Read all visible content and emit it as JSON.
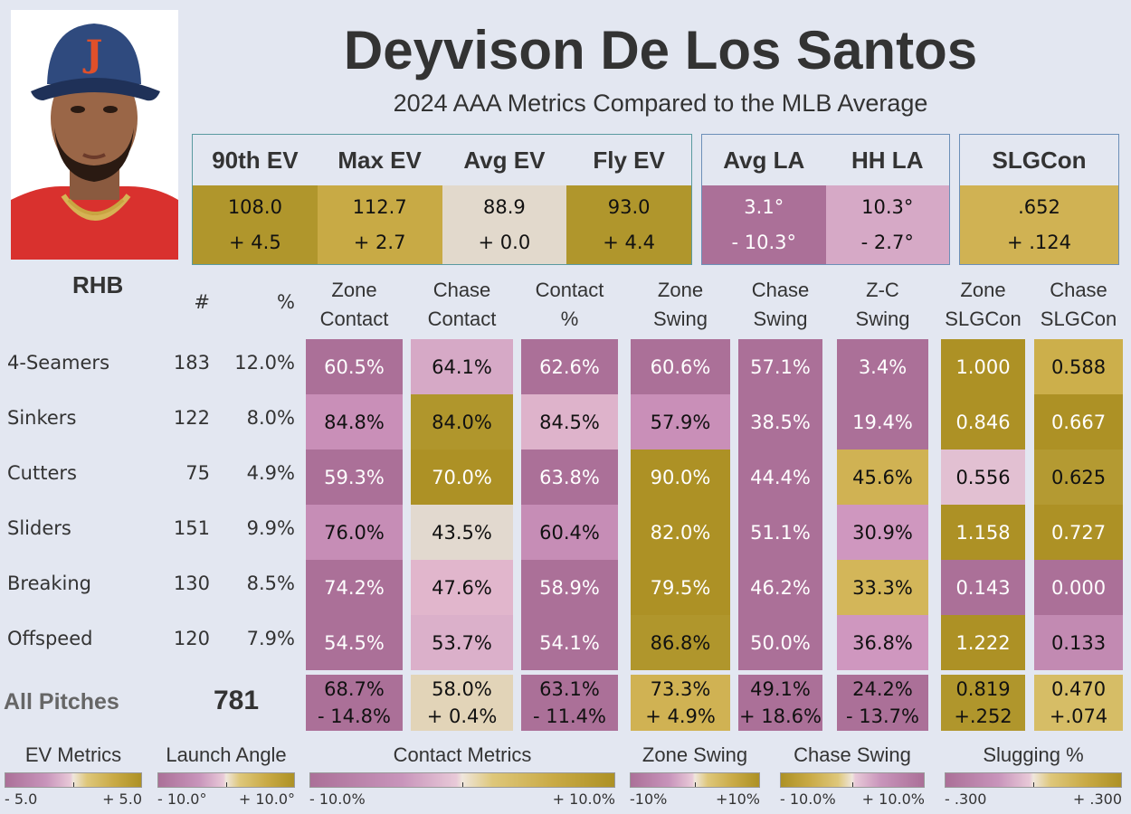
{
  "player": {
    "name": "Deyvison De Los Santos",
    "subtitle": "2024 AAA Metrics Compared to the MLB Average",
    "handedness": "RHB"
  },
  "summary_boxes": [
    {
      "name": "ev-box",
      "headers": [
        "90th EV",
        "Max EV",
        "Avg EV",
        "Fly EV"
      ],
      "values": [
        "108.0",
        "112.7",
        "88.9",
        "93.0"
      ],
      "diffs": [
        "+ 4.5",
        "+ 2.7",
        "+ 0.0",
        "+ 4.4"
      ],
      "colors": [
        "#b0962c",
        "#c8aa45",
        "#e2d9cc",
        "#b0962c"
      ],
      "text": [
        "k",
        "k",
        "k",
        "k"
      ]
    },
    {
      "name": "la-box",
      "headers": [
        "Avg LA",
        "HH LA"
      ],
      "values": [
        "3.1°",
        "10.3°"
      ],
      "diffs": [
        "- 10.3°",
        "- 2.7°"
      ],
      "colors": [
        "#ab7098",
        "#d6a9c6"
      ],
      "text": [
        "w",
        "k"
      ]
    },
    {
      "name": "slgcon-box",
      "headers": [
        "SLGCon"
      ],
      "values": [
        ".652"
      ],
      "diffs": [
        "+ .124"
      ],
      "colors": [
        "#d0b253"
      ],
      "text": [
        "k"
      ]
    }
  ],
  "table": {
    "count_header": "#",
    "pct_header": "%",
    "columns": [
      [
        "Zone",
        "Contact"
      ],
      [
        "Chase",
        "Contact"
      ],
      [
        "Contact",
        "%"
      ],
      [
        "Zone",
        "Swing"
      ],
      [
        "Chase",
        "Swing"
      ],
      [
        "Z-C",
        "Swing"
      ],
      [
        "Zone",
        "SLGCon"
      ],
      [
        "Chase",
        "SLGCon"
      ]
    ],
    "rows": [
      {
        "pitch": "4-Seamers",
        "count": "183",
        "pct": "12.0%",
        "values": [
          "60.5%",
          "64.1%",
          "62.6%",
          "60.6%",
          "57.1%",
          "3.4%",
          "1.000",
          "0.588"
        ],
        "colors": [
          "#ab7098",
          "#d6a9c6",
          "#ab7098",
          "#ab7098",
          "#ab7098",
          "#ab7098",
          "#ad9125",
          "#ccaf4b"
        ],
        "text": [
          "w",
          "k",
          "w",
          "w",
          "w",
          "w",
          "w",
          "k"
        ]
      },
      {
        "pitch": "Sinkers",
        "count": "122",
        "pct": "8.0%",
        "values": [
          "84.8%",
          "84.0%",
          "84.5%",
          "57.9%",
          "38.5%",
          "19.4%",
          "0.846",
          "0.667"
        ],
        "colors": [
          "#c98fb8",
          "#b0962c",
          "#deb3cb",
          "#c98fb8",
          "#ab7098",
          "#ab7098",
          "#ad9125",
          "#ad9125"
        ],
        "text": [
          "k",
          "k",
          "k",
          "k",
          "w",
          "w",
          "w",
          "w"
        ]
      },
      {
        "pitch": "Cutters",
        "count": "75",
        "pct": "4.9%",
        "values": [
          "59.3%",
          "70.0%",
          "63.8%",
          "90.0%",
          "44.4%",
          "45.6%",
          "0.556",
          "0.625"
        ],
        "colors": [
          "#ab7098",
          "#ad9125",
          "#ab7098",
          "#ad9125",
          "#ab7098",
          "#d0b253",
          "#e2c0d2",
          "#b49a32"
        ],
        "text": [
          "w",
          "w",
          "w",
          "w",
          "w",
          "k",
          "k",
          "k"
        ]
      },
      {
        "pitch": "Sliders",
        "count": "151",
        "pct": "9.9%",
        "values": [
          "76.0%",
          "43.5%",
          "60.4%",
          "82.0%",
          "51.1%",
          "30.9%",
          "1.158",
          "0.727"
        ],
        "colors": [
          "#c68db6",
          "#e2d9cf",
          "#c68db6",
          "#ad9125",
          "#ab7098",
          "#cf97bf",
          "#ad9125",
          "#ad9125"
        ],
        "text": [
          "k",
          "k",
          "k",
          "w",
          "w",
          "k",
          "w",
          "w"
        ]
      },
      {
        "pitch": "Breaking",
        "count": "130",
        "pct": "8.5%",
        "values": [
          "74.2%",
          "47.6%",
          "58.9%",
          "79.5%",
          "46.2%",
          "33.3%",
          "0.143",
          "0.000"
        ],
        "colors": [
          "#ab7098",
          "#e1b6cc",
          "#ab7098",
          "#ad9125",
          "#ab7098",
          "#d3b659",
          "#ab7098",
          "#ab7098"
        ],
        "text": [
          "w",
          "k",
          "w",
          "w",
          "w",
          "k",
          "w",
          "w"
        ]
      },
      {
        "pitch": "Offspeed",
        "count": "120",
        "pct": "7.9%",
        "values": [
          "54.5%",
          "53.7%",
          "54.1%",
          "86.8%",
          "50.0%",
          "36.8%",
          "1.222",
          "0.133"
        ],
        "colors": [
          "#ab7098",
          "#dbb0ca",
          "#ab7098",
          "#b0962c",
          "#ab7098",
          "#cf97bf",
          "#ad9125",
          "#c28ab2"
        ],
        "text": [
          "w",
          "k",
          "w",
          "k",
          "w",
          "k",
          "w",
          "k"
        ]
      }
    ],
    "totals": {
      "label": "All Pitches",
      "count": "781",
      "values": [
        "68.7%",
        "58.0%",
        "63.1%",
        "73.3%",
        "49.1%",
        "24.2%",
        "0.819",
        "0.470"
      ],
      "diffs": [
        "- 14.8%",
        "+ 0.4%",
        "- 11.4%",
        "+ 4.9%",
        "+ 18.6%",
        "- 13.7%",
        "+.252",
        "+.074"
      ],
      "colors": [
        "#ab7098",
        "#e2d4b8",
        "#ab7098",
        "#d0b253",
        "#ab7098",
        "#ab7098",
        "#b0962c",
        "#d6bd66"
      ],
      "text": [
        "k",
        "k",
        "k",
        "k",
        "k",
        "k",
        "k",
        "k"
      ]
    }
  },
  "legends": [
    {
      "title": "EV Metrics",
      "min": "- 5.0",
      "max": "+ 5.0",
      "direction": "purple-to-gold"
    },
    {
      "title": "Launch Angle",
      "min": "- 10.0°",
      "max": "+ 10.0°",
      "direction": "purple-to-gold"
    },
    {
      "title": "Contact Metrics",
      "min": "- 10.0%",
      "max": "+ 10.0%",
      "direction": "purple-to-gold"
    },
    {
      "title": "Zone Swing",
      "min": "-10%",
      "max": "+10%",
      "direction": "purple-to-gold"
    },
    {
      "title": "Chase Swing",
      "min": "- 10.0%",
      "max": "+ 10.0%",
      "direction": "gold-to-purple"
    },
    {
      "title": "Slugging %",
      "min": "- .300",
      "max": "+ .300",
      "direction": "purple-to-gold"
    }
  ],
  "colors": {
    "background": "#e3e7f1",
    "purple_dark": "#ab7098",
    "gold_dark": "#ad9125",
    "neutral": "#e6e0d8"
  }
}
